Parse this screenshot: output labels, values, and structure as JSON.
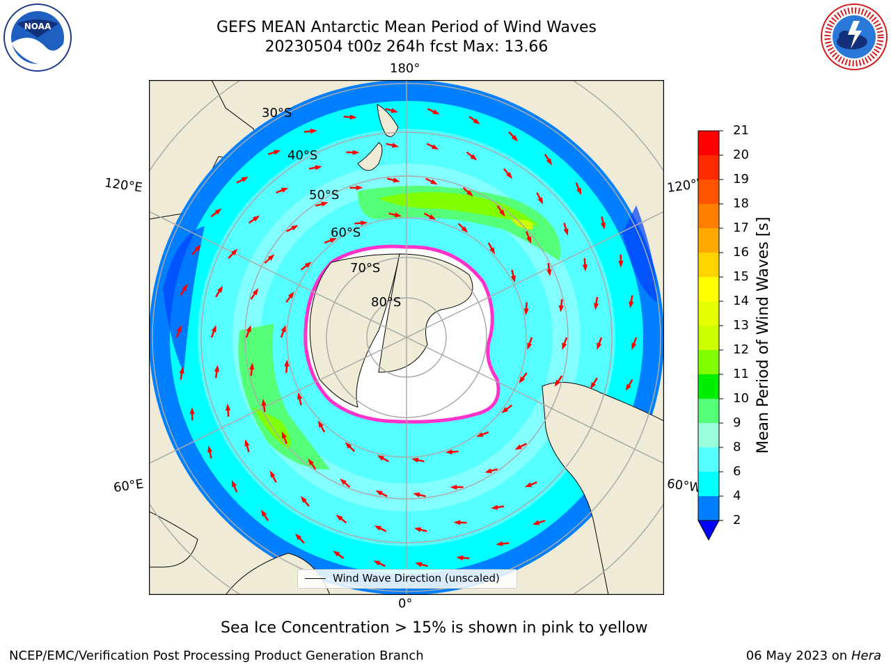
{
  "title": {
    "line1": "GEFS MEAN Antarctic Mean Period of Wind Waves",
    "line2": "20230504 t00z 264h fcst   Max: 13.66"
  },
  "map_labels": {
    "lon_180": "180°",
    "lon_0": "0°",
    "lon_120E": "120°E",
    "lon_120W": "120°W",
    "lon_60E": "60°E",
    "lon_60W": "60°W",
    "lat_30S": "30°S",
    "lat_40S": "40°S",
    "lat_50S": "50°S",
    "lat_60S": "60°S",
    "lat_70S": "70°S",
    "lat_80S": "80°S"
  },
  "legend": {
    "label": "Wind Wave Direction (unscaled)"
  },
  "colorbar": {
    "title": "Mean Period of Wind Waves [s]",
    "ticks": [
      "21",
      "20",
      "19",
      "18",
      "17",
      "16",
      "15",
      "14",
      "13",
      "12",
      "11",
      "10",
      "9",
      "8",
      "6",
      "4",
      "2"
    ],
    "bands": [
      "#ff0000",
      "#ff2a00",
      "#ff5500",
      "#ff8000",
      "#ffaa00",
      "#ffd400",
      "#ffff00",
      "#e6ff00",
      "#ccff00",
      "#80ff00",
      "#00ee00",
      "#55ff77",
      "#99ffdd",
      "#55ffff",
      "#00ffff",
      "#0080ff"
    ],
    "extend_color": "#0000ff"
  },
  "colors": {
    "land": "#efebd6",
    "ocean_low": "#0080ff",
    "ocean_mid": "#00ffff",
    "ocean_light": "#55ffff",
    "swell_green": "#55ff77",
    "bright_green": "#80ff00",
    "sea_ice": "#ff33cc",
    "arrow": "#ff0000"
  },
  "caption": "Sea Ice Concentration > 15% is shown in pink to yellow",
  "footer_left": "NCEP/EMC/Verification Post Processing Product Generation Branch",
  "footer_date": "06 May 2023 on",
  "footer_machine": "Hera",
  "logos": {
    "noaa": "NOAA",
    "nws": "NATIONAL WEATHER SERVICE"
  }
}
